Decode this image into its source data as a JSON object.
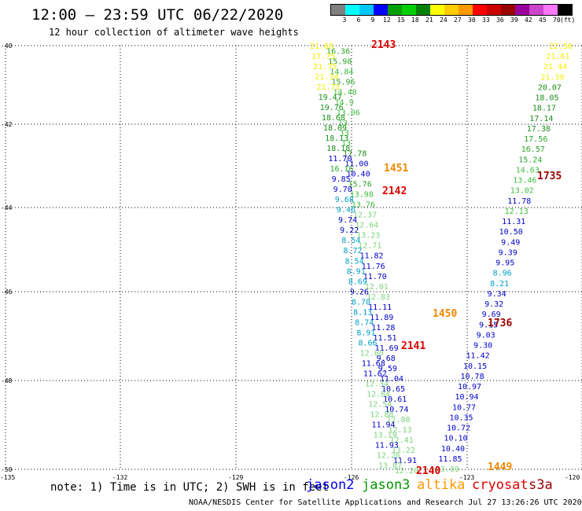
{
  "title": "12:00 — 23:59 UTC 06/22/2020",
  "subtitle": "12 hour collection of altimeter wave heights",
  "legend": {
    "colors": [
      "#808080",
      "#00ffff",
      "#00c8ff",
      "#0000ff",
      "#00a000",
      "#00d000",
      "#008000",
      "#ffff00",
      "#ffcc00",
      "#ff9900",
      "#ff0000",
      "#cc0000",
      "#990000",
      "#990099",
      "#cc44cc",
      "#ff77ff",
      "#000000"
    ],
    "labels": [
      "3",
      "6",
      "9",
      "12",
      "15",
      "18",
      "21",
      "24",
      "27",
      "30",
      "33",
      "36",
      "39",
      "42",
      "45",
      "70"
    ],
    "unit": "(ft)"
  },
  "axes": {
    "lat_labels": [
      "-40",
      "-42",
      "-44",
      "-46",
      "-48",
      "-50"
    ],
    "lon_labels": [
      "-135",
      "-132",
      "-129",
      "-126",
      "-123",
      "-120"
    ]
  },
  "tracks": [
    {
      "points": [
        [
          "21.66",
          "#f5ef00"
        ],
        [
          "16.36",
          "#2aa52a"
        ],
        [
          "17.75",
          "#f5ef00"
        ],
        [
          "15.98",
          "#2aa52a"
        ],
        [
          "21.75",
          "#f5ef00"
        ],
        [
          "14.84",
          "#3fbf3f"
        ],
        [
          "21.34",
          "#f5ef00"
        ],
        [
          "15.96",
          "#2aa52a"
        ],
        [
          "21.71",
          "#f5ef00"
        ],
        [
          "14.48",
          "#3fbf3f"
        ],
        [
          "19.47",
          "#1a8f1a"
        ],
        [
          "14.9",
          "#3fbf3f"
        ],
        [
          "19.76",
          "#1a8f1a"
        ],
        [
          "13.06",
          "#3fbf3f"
        ],
        [
          "18.68",
          "#1a8f1a"
        ],
        [
          "13",
          "#3fbf3f"
        ],
        [
          "18.09",
          "#1a8f1a"
        ],
        [
          "13",
          "#3fbf3f"
        ],
        [
          "18.13",
          "#1a8f1a"
        ],
        [
          "13",
          "#3fbf3f"
        ],
        [
          "18.18",
          "#1a8f1a"
        ],
        [
          "17.78",
          "#1a8f1a"
        ],
        [
          "11.70",
          "#0000cc"
        ],
        [
          "11.00",
          "#0000cc"
        ],
        [
          "16.16",
          "#2aa52a"
        ],
        [
          "10.40",
          "#0000cc"
        ],
        [
          "9.85",
          "#0000cc"
        ],
        [
          "15.76",
          "#2aa52a"
        ],
        [
          "9.70",
          "#0000cc"
        ],
        [
          "13.98",
          "#3fbf3f"
        ],
        [
          "9.68",
          "#00a0c8"
        ],
        [
          "13.76",
          "#3fbf3f"
        ],
        [
          "9.46",
          "#00a0c8"
        ],
        [
          "12.37",
          "#7ed37e"
        ],
        [
          "9.74",
          "#0000cc"
        ],
        [
          "12.64",
          "#7ed37e"
        ],
        [
          "9.22",
          "#0000cc"
        ],
        [
          "13.23",
          "#7ed37e"
        ],
        [
          "8.54",
          "#00a0c8"
        ],
        [
          "12.71",
          "#7ed37e"
        ],
        [
          "8.72",
          "#00a0c8"
        ],
        [
          "11.82",
          "#0000cc"
        ],
        [
          "8.54",
          "#00a0c8"
        ],
        [
          "11.76",
          "#0000cc"
        ],
        [
          "8.91",
          "#00a0c8"
        ],
        [
          "11.70",
          "#0000cc"
        ],
        [
          "8.69",
          "#00a0c8"
        ],
        [
          "12.01",
          "#7ed37e"
        ],
        [
          "9.26",
          "#0000cc"
        ],
        [
          "12.83",
          "#7ed37e"
        ],
        [
          "8.70",
          "#00a0c8"
        ],
        [
          "11.11",
          "#0000cc"
        ],
        [
          "8.13",
          "#00a0c8"
        ],
        [
          "11.89",
          "#0000cc"
        ],
        [
          "8.74",
          "#00a0c8"
        ],
        [
          "11.28",
          "#0000cc"
        ],
        [
          "8.91",
          "#00a0c8"
        ],
        [
          "11.51",
          "#0000cc"
        ],
        [
          "8.66",
          "#00a0c8"
        ],
        [
          "11.69",
          "#0000cc"
        ],
        [
          "12.60",
          "#7ed37e"
        ],
        [
          "9.68",
          "#0000cc"
        ],
        [
          "11.68",
          "#0000cc"
        ],
        [
          "9.59",
          "#0000cc"
        ],
        [
          "11.62",
          "#0000cc"
        ],
        [
          "11.04",
          "#0000cc"
        ],
        [
          "12.34",
          "#7ed37e"
        ],
        [
          "10.65",
          "#0000cc"
        ],
        [
          "12.84",
          "#7ed37e"
        ],
        [
          "10.61",
          "#0000cc"
        ],
        [
          "12.54",
          "#7ed37e"
        ],
        [
          "10.74",
          "#0000cc"
        ],
        [
          "12.88",
          "#7ed37e"
        ],
        [
          "12.88",
          "#7ed37e"
        ],
        [
          "11.94",
          "#0000cc"
        ],
        [
          "12.13",
          "#7ed37e"
        ],
        [
          "13.19",
          "#7ed37e"
        ],
        [
          "12.41",
          "#7ed37e"
        ],
        [
          "11.93",
          "#0000cc"
        ],
        [
          "13.22",
          "#7ed37e"
        ],
        [
          "12.26",
          "#7ed37e"
        ],
        [
          "11.91",
          "#0000cc"
        ],
        [
          "13.07",
          "#7ed37e"
        ],
        [
          "12.20",
          "#7ed37e"
        ]
      ]
    },
    {
      "points": [
        [
          "22.56",
          "#f5ef00"
        ],
        [
          "21.61",
          "#f5ef00"
        ],
        [
          "21.44",
          "#f5ef00"
        ],
        [
          "21.39",
          "#f5ef00"
        ],
        [
          "20.07",
          "#1a8f1a"
        ],
        [
          "18.05",
          "#1a8f1a"
        ],
        [
          "18.17",
          "#1a8f1a"
        ],
        [
          "17.14",
          "#1a8f1a"
        ],
        [
          "17.38",
          "#1a8f1a"
        ],
        [
          "17.56",
          "#2aa52a"
        ],
        [
          "16.57",
          "#2aa52a"
        ],
        [
          "15.24",
          "#2aa52a"
        ],
        [
          "14.63",
          "#3fbf3f"
        ],
        [
          "13.46",
          "#3fbf3f"
        ],
        [
          "13.02",
          "#3fbf3f"
        ],
        [
          "11.78",
          "#0000cc"
        ],
        [
          "12.13",
          "#3fbf3f"
        ],
        [
          "11.31",
          "#0000cc"
        ],
        [
          "10.50",
          "#0000cc"
        ],
        [
          "9.49",
          "#0000cc"
        ],
        [
          "9.39",
          "#0000cc"
        ],
        [
          "9.95",
          "#0000cc"
        ],
        [
          "8.96",
          "#00a0c8"
        ],
        [
          "8.21",
          "#00a0c8"
        ],
        [
          "9.34",
          "#0000cc"
        ],
        [
          "9.32",
          "#0000cc"
        ],
        [
          "9.69",
          "#0000cc"
        ],
        [
          "9.15",
          "#0000cc"
        ],
        [
          "9.03",
          "#0000cc"
        ],
        [
          "9.30",
          "#0000cc"
        ],
        [
          "11.42",
          "#0000cc"
        ],
        [
          "10.15",
          "#0000cc"
        ],
        [
          "10.78",
          "#0000cc"
        ],
        [
          "10.97",
          "#0000cc"
        ],
        [
          "10.94",
          "#0000cc"
        ],
        [
          "10.77",
          "#0000cc"
        ],
        [
          "10.35",
          "#0000cc"
        ],
        [
          "10.72",
          "#0000cc"
        ],
        [
          "10.10",
          "#0000cc"
        ],
        [
          "10.40",
          "#0000cc"
        ],
        [
          "11.85",
          "#0000cc"
        ],
        [
          "13.09",
          "#7ed37e"
        ]
      ]
    }
  ],
  "times": [
    {
      "text": "2143",
      "color": "#dd0000"
    },
    {
      "text": "1451",
      "color": "#ee8800"
    },
    {
      "text": "2142",
      "color": "#dd0000"
    },
    {
      "text": "1735",
      "color": "#990000"
    },
    {
      "text": "1450",
      "color": "#ee8800"
    },
    {
      "text": "1736",
      "color": "#990000"
    },
    {
      "text": "2141",
      "color": "#dd0000"
    },
    {
      "text": "2140",
      "color": "#dd0000"
    },
    {
      "text": "1449",
      "color": "#ee8800"
    }
  ],
  "note": "note: 1) Time is in UTC; 2) SWH is in feet",
  "satellites": [
    {
      "name": "jason2",
      "color": "#0000ee"
    },
    {
      "name": "jason3",
      "color": "#009900"
    },
    {
      "name": "altika",
      "color": "#ff9900"
    },
    {
      "name": "cryosat",
      "color": "#dd0000"
    },
    {
      "name": "s3a",
      "color": "#990000"
    }
  ],
  "footer": "NOAA/NESDIS Center for Satellite Applications and Research   Jul 27 13:26:26 UTC 2020"
}
